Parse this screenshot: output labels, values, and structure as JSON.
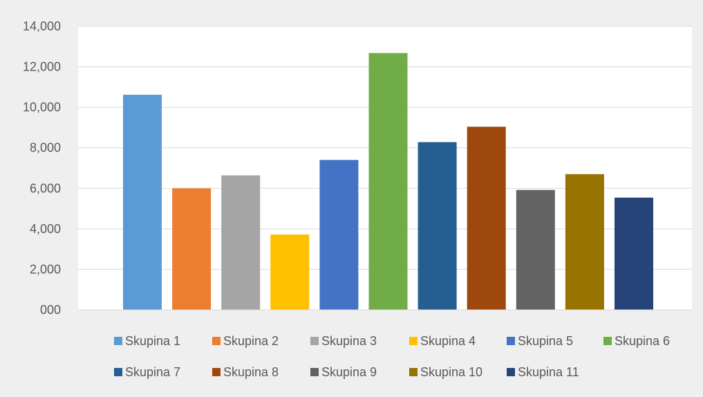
{
  "chart_data": {
    "type": "bar",
    "title": "",
    "xlabel": "",
    "ylabel": "",
    "ylim": [
      0,
      14000
    ],
    "yticks": [
      0,
      2000,
      4000,
      6000,
      8000,
      10000,
      12000,
      14000
    ],
    "ytick_labels": [
      "000",
      "2,000",
      "4,000",
      "6,000",
      "8,000",
      "10,000",
      "12,000",
      "14,000"
    ],
    "grid": true,
    "legend_position": "bottom",
    "categories": [
      "Skupina 1",
      "Skupina 2",
      "Skupina 3",
      "Skupina 4",
      "Skupina 5",
      "Skupina 6",
      "Skupina 7",
      "Skupina 8",
      "Skupina 9",
      "Skupina 10",
      "Skupina 11"
    ],
    "series": [
      {
        "name": "Skupina 1",
        "value": 10620,
        "color": "#5b9bd5"
      },
      {
        "name": "Skupina 2",
        "value": 6000,
        "color": "#ed7d31"
      },
      {
        "name": "Skupina 3",
        "value": 6640,
        "color": "#a5a5a5"
      },
      {
        "name": "Skupina 4",
        "value": 3720,
        "color": "#ffc000"
      },
      {
        "name": "Skupina 5",
        "value": 7400,
        "color": "#4472c4"
      },
      {
        "name": "Skupina 6",
        "value": 12680,
        "color": "#70ad47"
      },
      {
        "name": "Skupina 7",
        "value": 8280,
        "color": "#255e91"
      },
      {
        "name": "Skupina 8",
        "value": 9040,
        "color": "#9e480e"
      },
      {
        "name": "Skupina 9",
        "value": 5920,
        "color": "#636363"
      },
      {
        "name": "Skupina 10",
        "value": 6700,
        "color": "#997300"
      },
      {
        "name": "Skupina 11",
        "value": 5540,
        "color": "#264478"
      }
    ]
  }
}
